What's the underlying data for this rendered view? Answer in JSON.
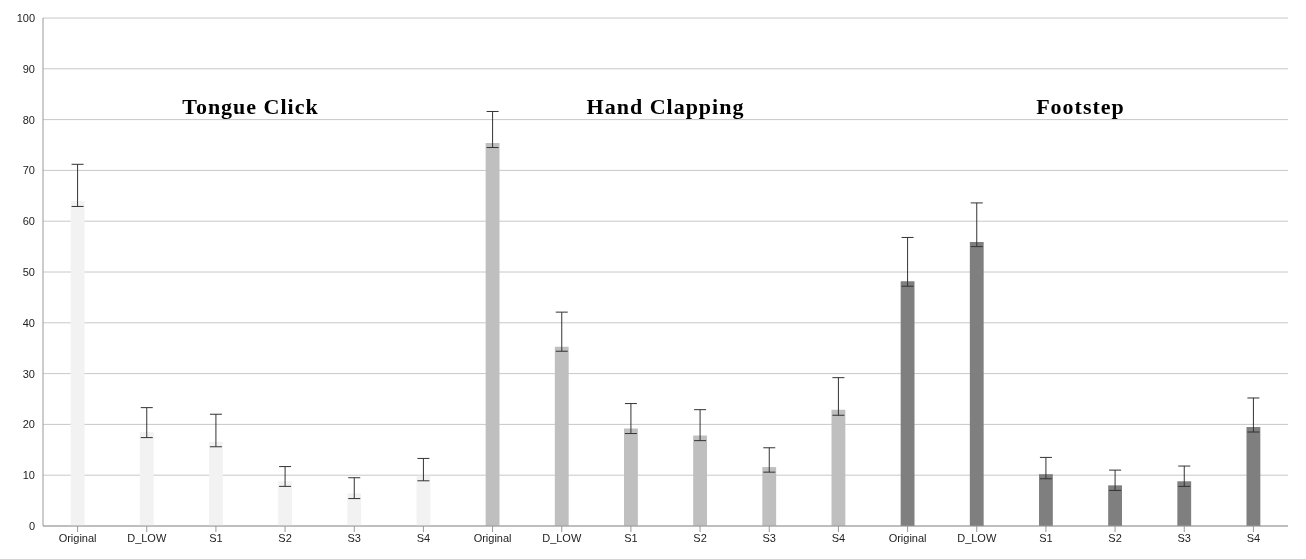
{
  "chart_data": {
    "type": "bar",
    "categories": [
      "Original",
      "D_LOW",
      "S1",
      "S2",
      "S3",
      "S4",
      "Original",
      "D_LOW",
      "S1",
      "S2",
      "S3",
      "S4",
      "Original",
      "D_LOW",
      "S1",
      "S2",
      "S3",
      "S4"
    ],
    "values": [
      64.0,
      18.5,
      16.6,
      8.8,
      6.4,
      9.9,
      75.4,
      35.3,
      19.2,
      17.8,
      11.6,
      22.9,
      48.2,
      55.9,
      10.2,
      8.0,
      8.8,
      19.5
    ],
    "errors": [
      [
        62.9,
        71.2
      ],
      [
        17.4,
        23.3
      ],
      [
        15.6,
        22.0
      ],
      [
        7.8,
        11.7
      ],
      [
        5.4,
        9.5
      ],
      [
        8.9,
        13.3
      ],
      [
        74.5,
        81.6
      ],
      [
        34.4,
        42.1
      ],
      [
        18.2,
        24.1
      ],
      [
        16.8,
        22.9
      ],
      [
        10.6,
        15.4
      ],
      [
        21.8,
        29.2
      ],
      [
        47.2,
        56.8
      ],
      [
        55.0,
        63.6
      ],
      [
        9.3,
        13.5
      ],
      [
        7.0,
        11.0
      ],
      [
        7.8,
        11.8
      ],
      [
        18.5,
        25.2
      ]
    ],
    "colors": [
      "#f2f2f2",
      "#f2f2f2",
      "#f2f2f2",
      "#f2f2f2",
      "#f2f2f2",
      "#f2f2f2",
      "#bfbfbf",
      "#bfbfbf",
      "#bfbfbf",
      "#bfbfbf",
      "#bfbfbf",
      "#bfbfbf",
      "#7f7f7f",
      "#7f7f7f",
      "#7f7f7f",
      "#7f7f7f",
      "#7f7f7f",
      "#7f7f7f"
    ],
    "annotations": [
      "Tongue Click",
      "Hand Clapping",
      "Footstep"
    ],
    "ylim": [
      0,
      100
    ],
    "yticks": [
      0,
      10,
      20,
      30,
      40,
      50,
      60,
      70,
      80,
      90,
      100
    ],
    "grid": "y",
    "legend": false
  }
}
